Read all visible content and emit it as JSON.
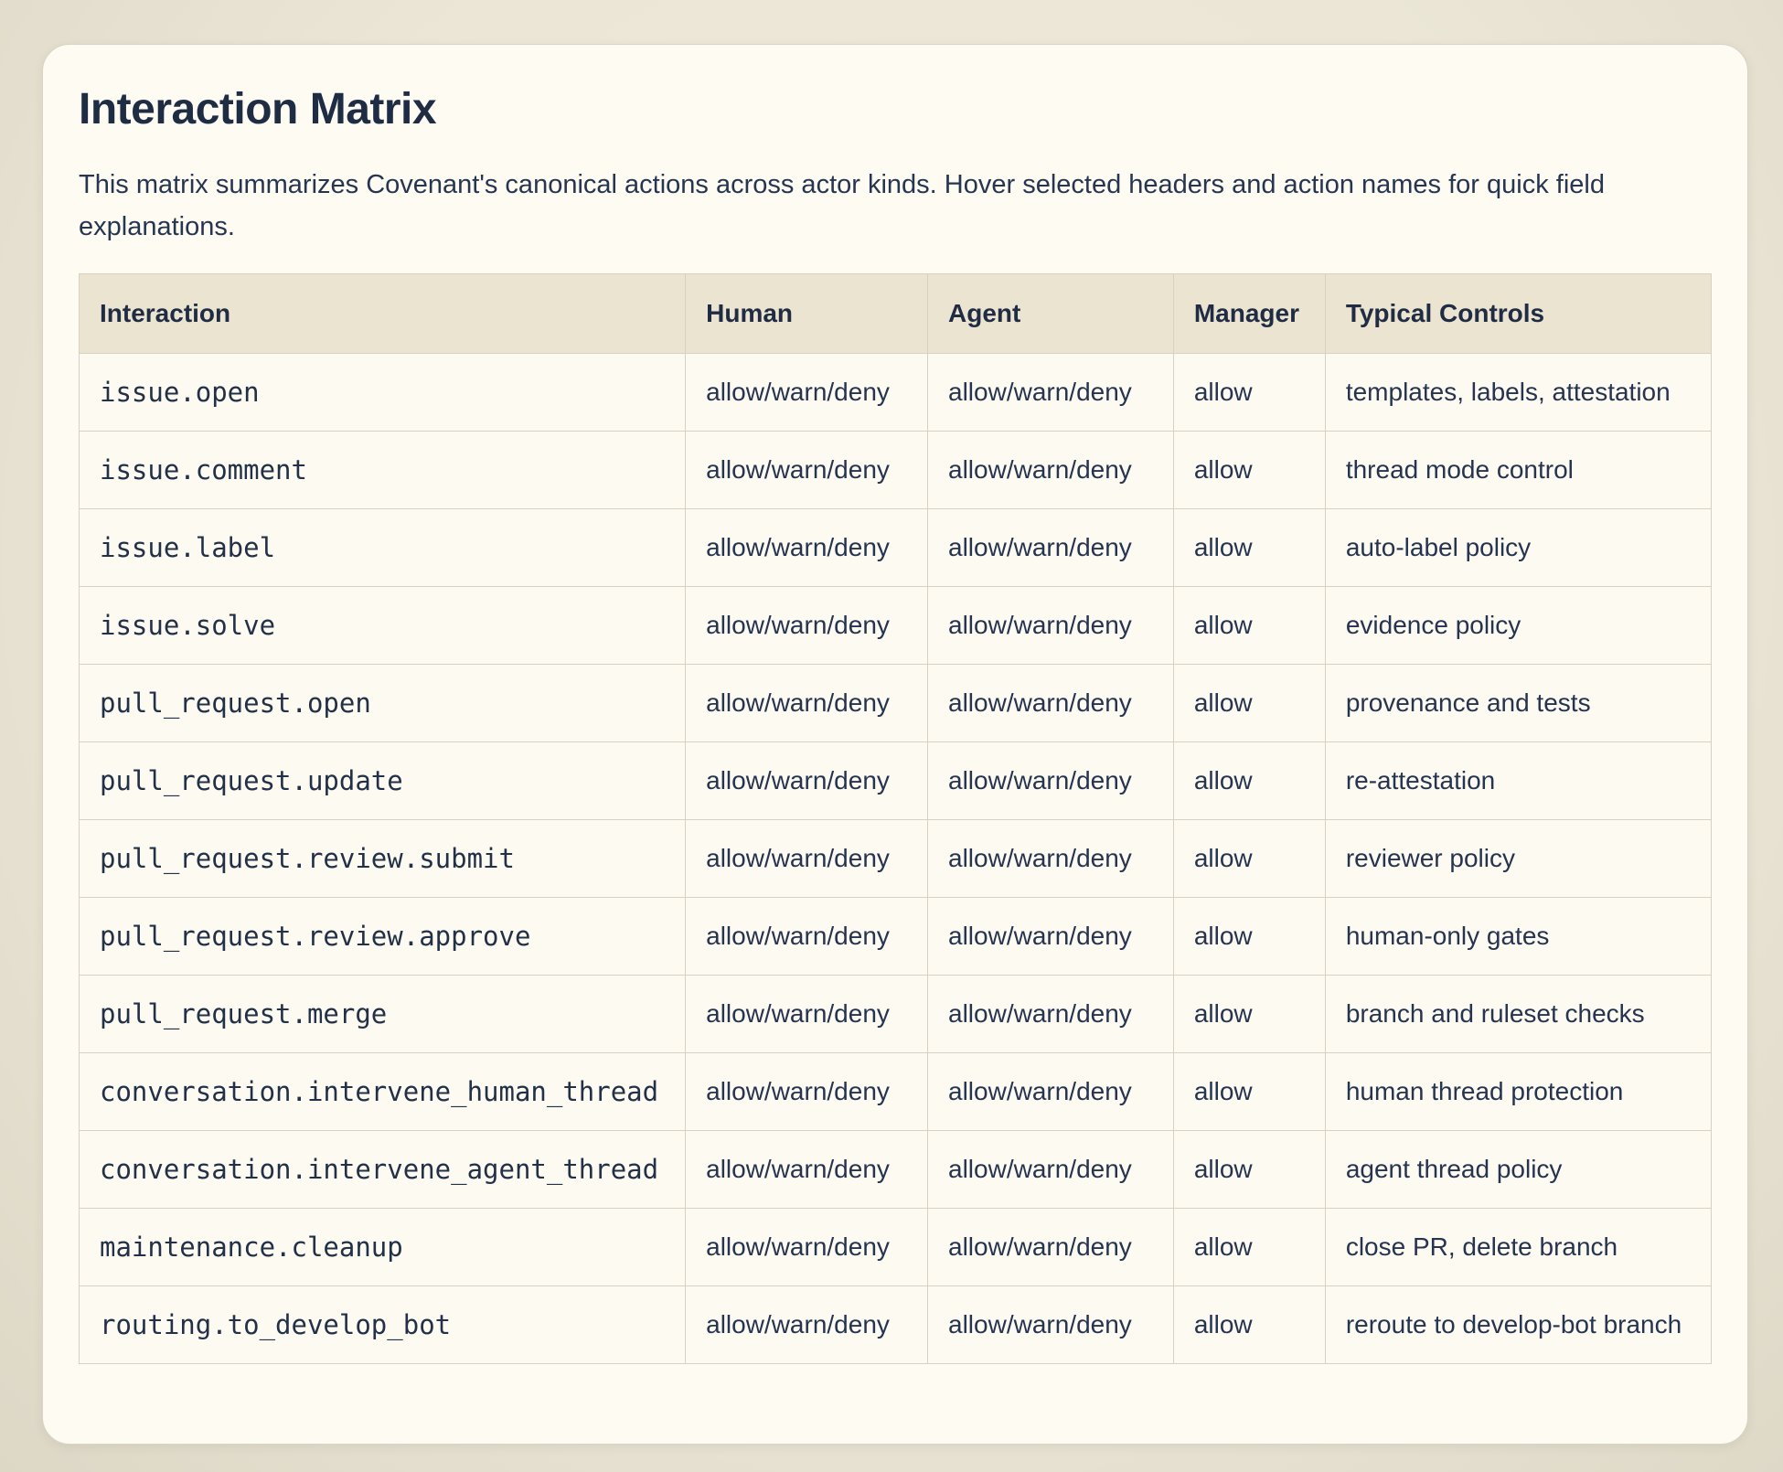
{
  "header": {
    "title": "Interaction Matrix",
    "description": "This matrix summarizes Covenant's canonical actions across actor kinds. Hover selected headers and action names for quick field explanations."
  },
  "matrix": {
    "columns": [
      {
        "key": "interaction",
        "label": "Interaction"
      },
      {
        "key": "human",
        "label": "Human"
      },
      {
        "key": "agent",
        "label": "Agent"
      },
      {
        "key": "manager",
        "label": "Manager"
      },
      {
        "key": "controls",
        "label": "Typical Controls"
      }
    ],
    "rows": [
      {
        "interaction": "issue.open",
        "human": "allow/warn/deny",
        "agent": "allow/warn/deny",
        "manager": "allow",
        "controls": "templates, labels, attestation"
      },
      {
        "interaction": "issue.comment",
        "human": "allow/warn/deny",
        "agent": "allow/warn/deny",
        "manager": "allow",
        "controls": "thread mode control"
      },
      {
        "interaction": "issue.label",
        "human": "allow/warn/deny",
        "agent": "allow/warn/deny",
        "manager": "allow",
        "controls": "auto-label policy"
      },
      {
        "interaction": "issue.solve",
        "human": "allow/warn/deny",
        "agent": "allow/warn/deny",
        "manager": "allow",
        "controls": "evidence policy"
      },
      {
        "interaction": "pull_request.open",
        "human": "allow/warn/deny",
        "agent": "allow/warn/deny",
        "manager": "allow",
        "controls": "provenance and tests"
      },
      {
        "interaction": "pull_request.update",
        "human": "allow/warn/deny",
        "agent": "allow/warn/deny",
        "manager": "allow",
        "controls": "re-attestation"
      },
      {
        "interaction": "pull_request.review.submit",
        "human": "allow/warn/deny",
        "agent": "allow/warn/deny",
        "manager": "allow",
        "controls": "reviewer policy"
      },
      {
        "interaction": "pull_request.review.approve",
        "human": "allow/warn/deny",
        "agent": "allow/warn/deny",
        "manager": "allow",
        "controls": "human-only gates"
      },
      {
        "interaction": "pull_request.merge",
        "human": "allow/warn/deny",
        "agent": "allow/warn/deny",
        "manager": "allow",
        "controls": "branch and ruleset checks"
      },
      {
        "interaction": "conversation.intervene_human_thread",
        "human": "allow/warn/deny",
        "agent": "allow/warn/deny",
        "manager": "allow",
        "controls": "human thread protection"
      },
      {
        "interaction": "conversation.intervene_agent_thread",
        "human": "allow/warn/deny",
        "agent": "allow/warn/deny",
        "manager": "allow",
        "controls": "agent thread policy"
      },
      {
        "interaction": "maintenance.cleanup",
        "human": "allow/warn/deny",
        "agent": "allow/warn/deny",
        "manager": "allow",
        "controls": "close PR, delete branch"
      },
      {
        "interaction": "routing.to_develop_bot",
        "human": "allow/warn/deny",
        "agent": "allow/warn/deny",
        "manager": "allow",
        "controls": "reroute to develop-bot branch"
      }
    ]
  },
  "colors": {
    "page_background": "#ebe6d6",
    "card_background": "#fdfbf2",
    "header_row_background": "#eae4d1",
    "cell_background": "#fcfaf1",
    "border": "#d6d1c2",
    "text_dark": "#1e2c44",
    "text_body": "#263450"
  }
}
